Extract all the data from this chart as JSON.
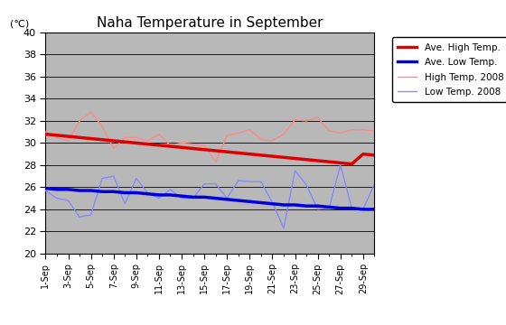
{
  "title": "Naha Temperature in September",
  "ylabel": "(℃)",
  "ylim": [
    20,
    40
  ],
  "yticks": [
    20,
    22,
    24,
    26,
    28,
    30,
    32,
    34,
    36,
    38,
    40
  ],
  "days": [
    1,
    2,
    3,
    4,
    5,
    6,
    7,
    8,
    9,
    10,
    11,
    12,
    13,
    14,
    15,
    16,
    17,
    18,
    19,
    20,
    21,
    22,
    23,
    24,
    25,
    26,
    27,
    28,
    29,
    30
  ],
  "xtick_labels": [
    "1-Sep",
    "3-Sep",
    "5-Sep",
    "7-Sep",
    "9-Sep",
    "11-Sep",
    "13-Sep",
    "15-Sep",
    "17-Sep",
    "19-Sep",
    "21-Sep",
    "23-Sep",
    "25-Sep",
    "27-Sep",
    "29-Sep"
  ],
  "xtick_label_positions": [
    1,
    3,
    5,
    7,
    9,
    11,
    13,
    15,
    17,
    19,
    21,
    23,
    25,
    27,
    29
  ],
  "xtick_minor_positions": [
    1,
    2,
    3,
    4,
    5,
    6,
    7,
    8,
    9,
    10,
    11,
    12,
    13,
    14,
    15,
    16,
    17,
    18,
    19,
    20,
    21,
    22,
    23,
    24,
    25,
    26,
    27,
    28,
    29,
    30
  ],
  "ave_high": [
    30.8,
    30.7,
    30.6,
    30.5,
    30.4,
    30.3,
    30.2,
    30.1,
    30.0,
    29.9,
    29.8,
    29.7,
    29.6,
    29.5,
    29.4,
    29.3,
    29.2,
    29.1,
    29.0,
    28.9,
    28.8,
    28.7,
    28.6,
    28.5,
    28.4,
    28.3,
    28.2,
    28.1,
    29.0,
    28.9
  ],
  "ave_low": [
    25.9,
    25.8,
    25.8,
    25.7,
    25.7,
    25.6,
    25.6,
    25.5,
    25.5,
    25.4,
    25.3,
    25.3,
    25.2,
    25.1,
    25.1,
    25.0,
    24.9,
    24.8,
    24.7,
    24.6,
    24.5,
    24.4,
    24.4,
    24.3,
    24.3,
    24.2,
    24.1,
    24.1,
    24.0,
    24.0
  ],
  "high_2008": [
    31.0,
    30.5,
    30.2,
    32.0,
    32.8,
    31.5,
    29.5,
    30.5,
    30.5,
    30.2,
    30.8,
    29.8,
    30.0,
    29.9,
    29.8,
    28.3,
    30.7,
    30.9,
    31.2,
    30.3,
    30.2,
    30.8,
    32.1,
    32.0,
    32.3,
    31.1,
    30.9,
    31.2,
    31.2,
    31.1
  ],
  "low_2008": [
    25.7,
    25.0,
    24.8,
    23.3,
    23.5,
    26.8,
    27.0,
    24.5,
    26.8,
    25.5,
    25.0,
    25.8,
    25.0,
    25.0,
    26.3,
    26.3,
    25.0,
    26.6,
    26.5,
    26.5,
    24.6,
    22.3,
    27.5,
    26.2,
    24.0,
    24.1,
    28.0,
    24.1,
    24.0,
    26.3
  ],
  "ave_high_color": "#dd0000",
  "ave_low_color": "#0000dd",
  "high_2008_color": "#ff8888",
  "low_2008_color": "#8888ff",
  "plot_bg_color": "#b8b8b8",
  "legend_labels": [
    "Ave. High Temp.",
    "Ave. Low Temp.",
    "High Temp. 2008",
    "Low Temp. 2008"
  ]
}
